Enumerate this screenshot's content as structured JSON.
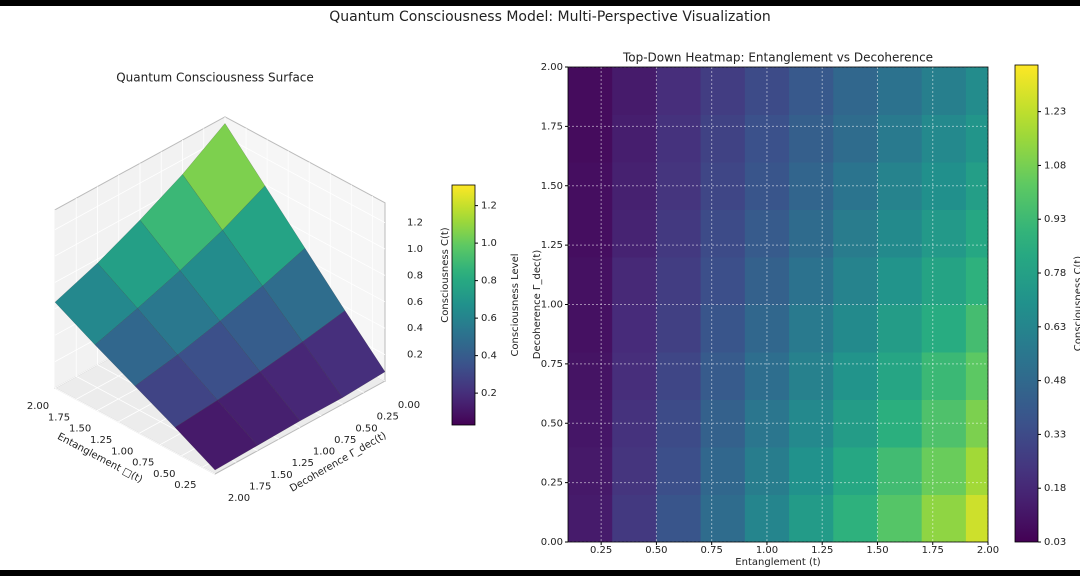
{
  "title": "Quantum Consciousness Model: Multi-Perspective Visualization",
  "chart_data": [
    {
      "type": "surface3d",
      "title": "Quantum Consciousness Surface",
      "xlabel": "Entanglement □(t)",
      "ylabel": "Decoherence Γ_dec(t)",
      "zlabel": "Consciousness C(t)",
      "x": [
        0.1,
        0.575,
        1.05,
        1.525,
        2.0
      ],
      "y": [
        0,
        0.5,
        1,
        1.5,
        2
      ],
      "z": [
        [
          0.07,
          0.37,
          0.68,
          0.99,
          1.3
        ],
        [
          0.05,
          0.31,
          0.57,
          0.83,
          1.09
        ],
        [
          0.05,
          0.26,
          0.48,
          0.7,
          0.92
        ],
        [
          0.04,
          0.22,
          0.4,
          0.59,
          0.77
        ],
        [
          0.03,
          0.19,
          0.34,
          0.49,
          0.65
        ]
      ],
      "xlim": [
        0.1,
        2.0
      ],
      "ylim": [
        0,
        2
      ],
      "zlim": [
        0,
        1.35
      ],
      "xticks": [
        {
          "value": 0.25,
          "label": "0.25"
        },
        {
          "value": 0.5,
          "label": "0.50"
        },
        {
          "value": 0.75,
          "label": "0.75"
        },
        {
          "value": 1,
          "label": "1.00"
        },
        {
          "value": 1.25,
          "label": "1.25"
        },
        {
          "value": 1.5,
          "label": "1.50"
        },
        {
          "value": 1.75,
          "label": "1.75"
        },
        {
          "value": 2,
          "label": "2.00"
        }
      ],
      "yticks": [
        {
          "value": 0,
          "label": "0.00"
        },
        {
          "value": 0.25,
          "label": "0.25"
        },
        {
          "value": 0.5,
          "label": "0.50"
        },
        {
          "value": 0.75,
          "label": "0.75"
        },
        {
          "value": 1,
          "label": "1.00"
        },
        {
          "value": 1.25,
          "label": "1.25"
        },
        {
          "value": 1.5,
          "label": "1.50"
        },
        {
          "value": 1.75,
          "label": "1.75"
        },
        {
          "value": 2,
          "label": "2.00"
        }
      ],
      "zticks": [
        0.2,
        0.4,
        0.6,
        0.8,
        {
          "value": 1,
          "label": "1.0"
        },
        1.2
      ],
      "colormap": "viridis",
      "clim": [
        0.03,
        1.31
      ],
      "colorbar_label": "Consciousness Level",
      "colorbar_ticks": [
        0.2,
        0.4,
        0.6,
        0.8,
        {
          "value": 1,
          "label": "1.0"
        },
        1.2
      ]
    },
    {
      "type": "heatmap",
      "title": "Top-Down Heatmap: Entanglement vs Decoherence",
      "xlabel": "Entanglement  (t)",
      "ylabel": "Decoherence Γ_dec(t)",
      "x": [
        0.2,
        0.4,
        0.6,
        0.8,
        1.0,
        1.2,
        1.4,
        1.6,
        1.8,
        2.0
      ],
      "y": [
        0.1,
        0.3,
        0.5,
        0.7,
        0.9,
        1.1,
        1.3,
        1.5,
        1.7,
        1.9
      ],
      "z": [
        [
          0.13,
          0.25,
          0.38,
          0.5,
          0.63,
          0.75,
          0.88,
          1.0,
          1.13,
          1.26
        ],
        [
          0.12,
          0.23,
          0.35,
          0.47,
          0.59,
          0.7,
          0.82,
          0.94,
          1.05,
          1.17
        ],
        [
          0.11,
          0.22,
          0.33,
          0.44,
          0.55,
          0.65,
          0.76,
          0.87,
          0.98,
          1.09
        ],
        [
          0.1,
          0.2,
          0.31,
          0.41,
          0.51,
          0.61,
          0.71,
          0.81,
          0.92,
          1.02
        ],
        [
          0.09,
          0.19,
          0.28,
          0.38,
          0.47,
          0.57,
          0.66,
          0.76,
          0.85,
          0.95
        ],
        [
          0.09,
          0.18,
          0.27,
          0.35,
          0.44,
          0.53,
          0.62,
          0.71,
          0.8,
          0.88
        ],
        [
          0.08,
          0.16,
          0.25,
          0.33,
          0.41,
          0.49,
          0.58,
          0.66,
          0.74,
          0.82
        ],
        [
          0.08,
          0.15,
          0.23,
          0.31,
          0.38,
          0.46,
          0.54,
          0.62,
          0.69,
          0.77
        ],
        [
          0.07,
          0.14,
          0.22,
          0.29,
          0.36,
          0.43,
          0.5,
          0.57,
          0.65,
          0.72
        ],
        [
          0.07,
          0.13,
          0.2,
          0.27,
          0.33,
          0.4,
          0.47,
          0.53,
          0.6,
          0.67
        ]
      ],
      "xlim": [
        0.1,
        2.0
      ],
      "ylim": [
        0,
        2
      ],
      "xticks": [
        {
          "value": 0.25,
          "label": "0.25"
        },
        {
          "value": 0.5,
          "label": "0.50"
        },
        {
          "value": 0.75,
          "label": "0.75"
        },
        {
          "value": 1,
          "label": "1.00"
        },
        {
          "value": 1.25,
          "label": "1.25"
        },
        {
          "value": 1.5,
          "label": "1.50"
        },
        {
          "value": 1.75,
          "label": "1.75"
        },
        {
          "value": 2,
          "label": "2.00"
        }
      ],
      "yticks": [
        {
          "value": 0,
          "label": "0.00"
        },
        {
          "value": 0.25,
          "label": "0.25"
        },
        {
          "value": 0.5,
          "label": "0.50"
        },
        {
          "value": 0.75,
          "label": "0.75"
        },
        {
          "value": 1,
          "label": "1.00"
        },
        {
          "value": 1.25,
          "label": "1.25"
        },
        {
          "value": 1.5,
          "label": "1.50"
        },
        {
          "value": 1.75,
          "label": "1.75"
        },
        {
          "value": 2,
          "label": "2.00"
        }
      ],
      "grid": true,
      "colormap": "viridis",
      "clim": [
        0.03,
        1.36
      ],
      "colorbar_label": "Consciousness C(t)",
      "colorbar_ticks": [
        0.03,
        0.18,
        0.33,
        0.48,
        0.63,
        0.78,
        0.93,
        1.08,
        1.23
      ]
    }
  ]
}
